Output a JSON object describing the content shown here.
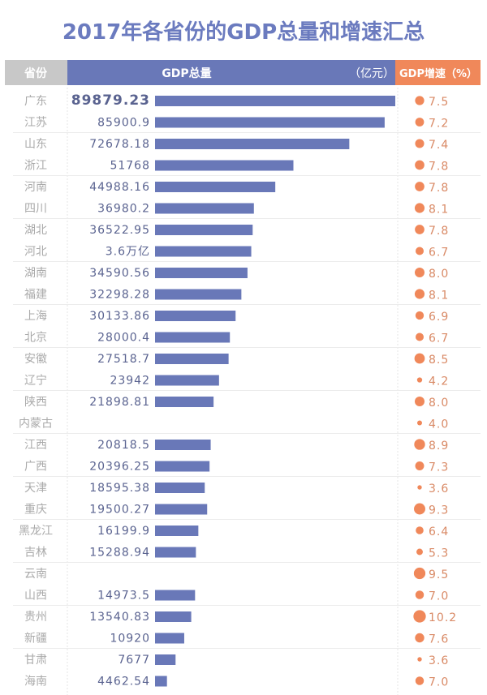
{
  "chart_data": {
    "type": "bar",
    "title": "2017年各省份的GDP总量和增速汇总",
    "headers": {
      "province": "省份",
      "gdp": "GDP总量",
      "gdp_unit": "（亿元）",
      "growth": "GDP增速（%）"
    },
    "colors": {
      "title": "#6b7bbf",
      "bar": "#6978b8",
      "header_gdp": "#6978b8",
      "header_province": "#c8c8c8",
      "header_growth": "#f0885a",
      "dot": "#f0885a",
      "growth_text": "#d98a66",
      "value_text": "#5a6390",
      "province_text": "#aaaaaa"
    },
    "rows": [
      {
        "province": "广东",
        "gdp": 89879.23,
        "gdp_label": "89879.23",
        "growth": 7.5,
        "growth_label": "7.5"
      },
      {
        "province": "江苏",
        "gdp": 85900.9,
        "gdp_label": "85900.9",
        "growth": 7.2,
        "growth_label": "7.2"
      },
      {
        "province": "山东",
        "gdp": 72678.18,
        "gdp_label": "72678.18",
        "growth": 7.4,
        "growth_label": "7.4"
      },
      {
        "province": "浙江",
        "gdp": 51768,
        "gdp_label": "51768",
        "growth": 7.8,
        "growth_label": "7.8"
      },
      {
        "province": "河南",
        "gdp": 44988.16,
        "gdp_label": "44988.16",
        "growth": 7.8,
        "growth_label": "7.8"
      },
      {
        "province": "四川",
        "gdp": 36980.2,
        "gdp_label": "36980.2",
        "growth": 8.1,
        "growth_label": "8.1"
      },
      {
        "province": "湖北",
        "gdp": 36522.95,
        "gdp_label": "36522.95",
        "growth": 7.8,
        "growth_label": "7.8"
      },
      {
        "province": "河北",
        "gdp": 36000,
        "gdp_label": "3.6万亿",
        "growth": 6.7,
        "growth_label": "6.7"
      },
      {
        "province": "湖南",
        "gdp": 34590.56,
        "gdp_label": "34590.56",
        "growth": 8.0,
        "growth_label": "8.0"
      },
      {
        "province": "福建",
        "gdp": 32298.28,
        "gdp_label": "32298.28",
        "growth": 8.1,
        "growth_label": "8.1"
      },
      {
        "province": "上海",
        "gdp": 30133.86,
        "gdp_label": "30133.86",
        "growth": 6.9,
        "growth_label": "6.9"
      },
      {
        "province": "北京",
        "gdp": 28000.4,
        "gdp_label": "28000.4",
        "growth": 6.7,
        "growth_label": "6.7"
      },
      {
        "province": "安徽",
        "gdp": 27518.7,
        "gdp_label": "27518.7",
        "growth": 8.5,
        "growth_label": "8.5"
      },
      {
        "province": "辽宁",
        "gdp": 23942,
        "gdp_label": "23942",
        "growth": 4.2,
        "growth_label": "4.2"
      },
      {
        "province": "陕西",
        "gdp": 21898.81,
        "gdp_label": "21898.81",
        "growth": 8.0,
        "growth_label": "8.0"
      },
      {
        "province": "内蒙古",
        "gdp": null,
        "gdp_label": "",
        "growth": 4.0,
        "growth_label": "4.0"
      },
      {
        "province": "江西",
        "gdp": 20818.5,
        "gdp_label": "20818.5",
        "growth": 8.9,
        "growth_label": "8.9"
      },
      {
        "province": "广西",
        "gdp": 20396.25,
        "gdp_label": "20396.25",
        "growth": 7.3,
        "growth_label": "7.3"
      },
      {
        "province": "天津",
        "gdp": 18595.38,
        "gdp_label": "18595.38",
        "growth": 3.6,
        "growth_label": "3.6"
      },
      {
        "province": "重庆",
        "gdp": 19500.27,
        "gdp_label": "19500.27",
        "growth": 9.3,
        "growth_label": "9.3"
      },
      {
        "province": "黑龙江",
        "gdp": 16199.9,
        "gdp_label": "16199.9",
        "growth": 6.4,
        "growth_label": "6.4"
      },
      {
        "province": "吉林",
        "gdp": 15288.94,
        "gdp_label": "15288.94",
        "growth": 5.3,
        "growth_label": "5.3"
      },
      {
        "province": "云南",
        "gdp": null,
        "gdp_label": "",
        "growth": 9.5,
        "growth_label": "9.5"
      },
      {
        "province": "山西",
        "gdp": 14973.5,
        "gdp_label": "14973.5",
        "growth": 7.0,
        "growth_label": "7.0"
      },
      {
        "province": "贵州",
        "gdp": 13540.83,
        "gdp_label": "13540.83",
        "growth": 10.2,
        "growth_label": "10.2"
      },
      {
        "province": "新疆",
        "gdp": 10920,
        "gdp_label": "10920",
        "growth": 7.6,
        "growth_label": "7.6"
      },
      {
        "province": "甘肃",
        "gdp": 7677,
        "gdp_label": "7677",
        "growth": 3.6,
        "growth_label": "3.6"
      },
      {
        "province": "海南",
        "gdp": 4462.54,
        "gdp_label": "4462.54",
        "growth": 7.0,
        "growth_label": "7.0"
      }
    ]
  }
}
